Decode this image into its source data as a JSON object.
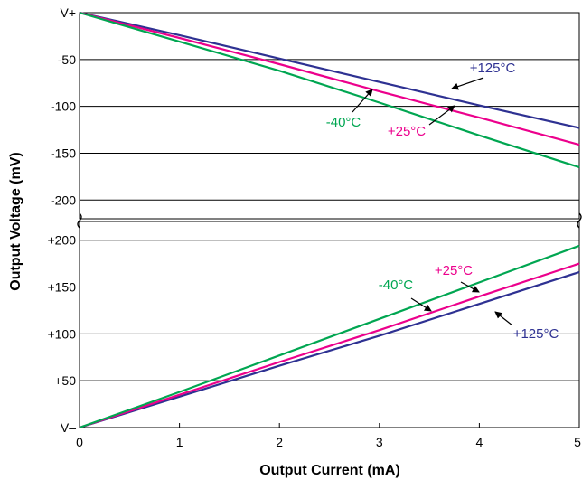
{
  "chart_data": {
    "type": "line",
    "title": "",
    "xlabel": "Output Current (mA)",
    "ylabel": "Output Voltage (mV)",
    "colors": {
      "+125°C": "#2e3192",
      "+25°C": "#ec008c",
      "-40°C": "#00a651"
    },
    "grid": true,
    "panels": [
      {
        "name": "top",
        "xlim": [
          0,
          5
        ],
        "ylim": [
          -220,
          0
        ],
        "x_ticks": [
          "0",
          "1",
          "2",
          "3",
          "4",
          "5"
        ],
        "y_ticks": [
          {
            "value": 0,
            "label": "V+"
          },
          {
            "value": -50,
            "label": "-50"
          },
          {
            "value": -100,
            "label": "-100"
          },
          {
            "value": -150,
            "label": "-150"
          },
          {
            "value": -200,
            "label": "-200"
          }
        ],
        "series": [
          {
            "name": "+125°C",
            "x": [
              0,
              1,
              2,
              3,
              4,
              5
            ],
            "y": [
              0,
              -24,
              -49,
              -74,
              -99,
              -123
            ]
          },
          {
            "name": "+25°C",
            "x": [
              0,
              1,
              2,
              3,
              4,
              5
            ],
            "y": [
              0,
              -27,
              -55,
              -84,
              -112,
              -141
            ]
          },
          {
            "name": "-40°C",
            "x": [
              0,
              1,
              2,
              3,
              4,
              5
            ],
            "y": [
              0,
              -31,
              -62,
              -96,
              -131,
              -165
            ]
          }
        ],
        "annotations": [
          {
            "text": "+125°C",
            "series": "+125°C",
            "x": 3.7,
            "y": -92
          },
          {
            "text": "+25°C",
            "series": "+25°C",
            "x": 3.5,
            "y": -100
          },
          {
            "text": "-40°C",
            "series": "-40°C",
            "x": 2.9,
            "y": -90
          }
        ]
      },
      {
        "name": "bottom",
        "xlim": [
          0,
          5
        ],
        "ylim": [
          0,
          220
        ],
        "x_ticks": [
          "0",
          "1",
          "2",
          "3",
          "4",
          "5"
        ],
        "y_ticks": [
          {
            "value": 0,
            "label": "V–"
          },
          {
            "value": 50,
            "label": "+50"
          },
          {
            "value": 100,
            "label": "+100"
          },
          {
            "value": 150,
            "label": "+150"
          },
          {
            "value": 200,
            "label": "+200"
          }
        ],
        "series": [
          {
            "name": "+125°C",
            "x": [
              0,
              1,
              2,
              3,
              4,
              5
            ],
            "y": [
              0,
              33,
              66,
              98,
              132,
              166
            ]
          },
          {
            "name": "+25°C",
            "x": [
              0,
              1,
              2,
              3,
              4,
              5
            ],
            "y": [
              0,
              35,
              70,
              104,
              140,
              175
            ]
          },
          {
            "name": "-40°C",
            "x": [
              0,
              1,
              2,
              3,
              4,
              5
            ],
            "y": [
              0,
              38,
              77,
              116,
              155,
              194
            ]
          }
        ],
        "annotations": [
          {
            "text": "+125°C",
            "series": "+125°C",
            "x": 3.95,
            "y": 128
          },
          {
            "text": "+25°C",
            "series": "+25°C",
            "x": 3.95,
            "y": 136
          },
          {
            "text": "-40°C",
            "series": "-40°C",
            "x": 3.5,
            "y": 148
          }
        ]
      }
    ]
  }
}
